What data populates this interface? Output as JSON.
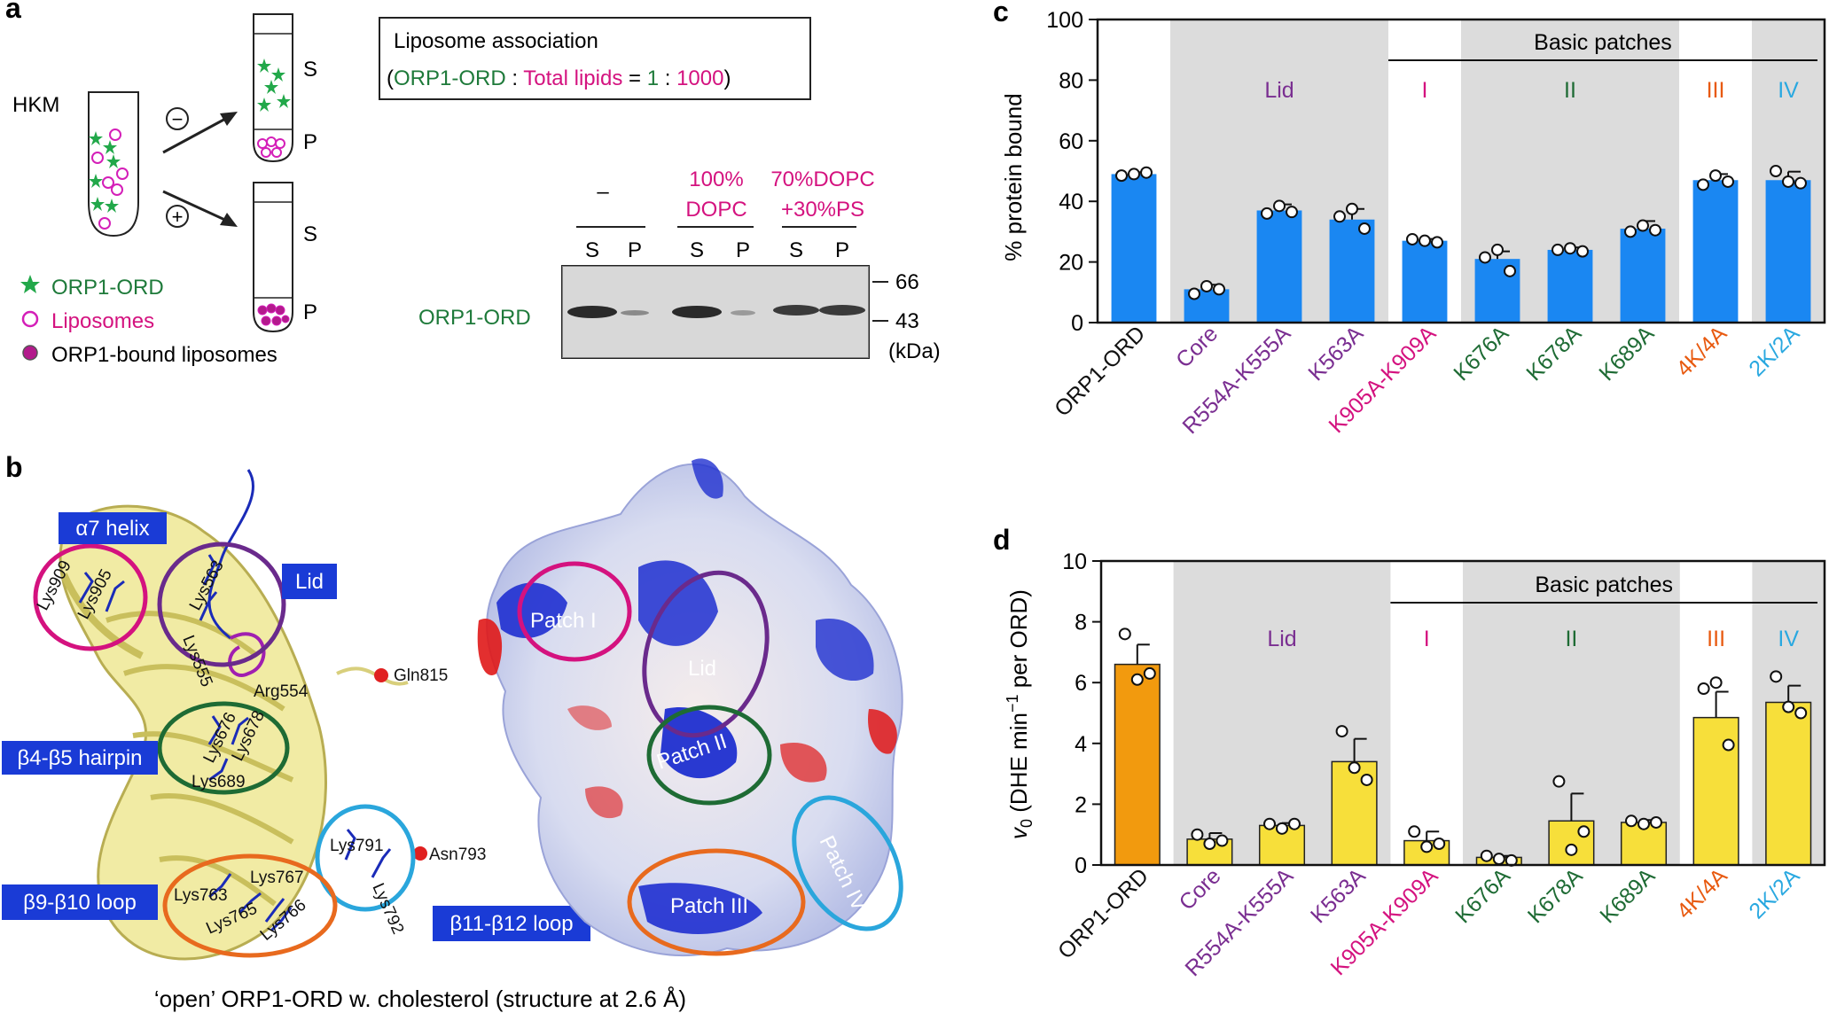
{
  "panel_a": {
    "label": "a",
    "hkm": "HKM",
    "s_label": "S",
    "p_label": "P",
    "minus": "−",
    "plus": "+",
    "legend": {
      "orp": "ORP1-ORD",
      "lipo": "Liposomes",
      "bound": "ORP1-bound liposomes"
    },
    "box_title": "Liposome association",
    "ratio": {
      "open": "(",
      "orp": "ORP1-ORD",
      "colon1": " : ",
      "lipids": "Total lipids",
      "eq": " = ",
      "one": "1",
      "colon2": " : ",
      "thousand": "1000",
      "close": ")"
    },
    "gel": {
      "cond_none": "–",
      "cond_dopc_1": "100%",
      "cond_dopc_2": "DOPC",
      "cond_ps_1": "70%DOPC",
      "cond_ps_2": "+30%PS",
      "lanes": [
        "S",
        "P",
        "S",
        "P",
        "S",
        "P"
      ],
      "band_label": "ORP1-ORD",
      "marker_66": "66",
      "marker_43": "43",
      "kda": "(kDa)"
    },
    "colors": {
      "green": "#1e7a3a",
      "magenta": "#d4127f",
      "green_star": "#22a84a"
    }
  },
  "panel_b": {
    "label": "b",
    "tags": {
      "a7": "α7 helix",
      "lid": "Lid",
      "b4b5": "β4-β5 hairpin",
      "b9b10": "β9-β10 loop",
      "b11b12": "β11-β12 loop"
    },
    "residues": {
      "lys909": "Lys909",
      "lys905": "Lys905",
      "lys563": "Lys563",
      "lys555": "Lys555",
      "arg554": "Arg554",
      "gln815": "Gln815",
      "lys676": "Lys676",
      "lys678": "Lys678",
      "lys689": "Lys689",
      "lys791": "Lys791",
      "lys792": "Lys792",
      "asn793": "Asn793",
      "lys763": "Lys763",
      "lys767": "Lys767",
      "lys765": "Lys765",
      "lys766": "Lys766"
    },
    "patches": {
      "p1": "Patch I",
      "lid": "Lid",
      "p2": "Patch II",
      "p3": "Patch III",
      "p4": "Patch IV"
    },
    "caption": "‘open’ ORP1-ORD w. cholesterol (structure at 2.6 Å)",
    "colors": {
      "tag_bg": "#1a3bd6",
      "circle_magenta": "#d4127f",
      "circle_purple": "#6a2a8c",
      "circle_green": "#1e6b34",
      "circle_orange": "#e86a1e",
      "circle_cyan": "#2aa6dc"
    }
  },
  "panel_c": {
    "label": "c",
    "chart_data": {
      "type": "bar",
      "title": "",
      "ylabel": "% protein bound",
      "ylim": [
        0,
        100
      ],
      "yticks": [
        "0",
        "20",
        "40",
        "60",
        "80",
        "100"
      ],
      "categories": [
        "ORP1-ORD",
        "Core",
        "R554A-K555A",
        "K563A",
        "K905A-K909A",
        "K676A",
        "K678A",
        "K689A",
        "4K/4A",
        "2K/2A"
      ],
      "values": [
        49,
        11,
        37,
        34,
        27,
        21,
        24,
        31,
        47,
        47
      ],
      "errors": [
        0.6,
        1.5,
        2,
        3.5,
        0.6,
        2.5,
        0.8,
        2.5,
        2,
        2.8
      ],
      "points": [
        [
          48.5,
          49,
          49.5
        ],
        [
          9.5,
          12,
          11
        ],
        [
          36,
          38.5,
          36.5
        ],
        [
          35,
          37.5,
          31
        ],
        [
          27.5,
          27,
          26.5
        ],
        [
          21.5,
          24,
          17
        ],
        [
          24,
          24.5,
          23.5
        ],
        [
          30,
          32,
          30.5
        ],
        [
          45.5,
          48.5,
          46.5
        ],
        [
          50,
          46.5,
          46
        ]
      ],
      "bar_color": "#1a87f2",
      "bracket": "Basic patches",
      "groups": [
        "Lid",
        "I",
        "II",
        "III",
        "IV"
      ],
      "group_colors": [
        "#7a2e91",
        "#d4127f",
        "#1e6b34",
        "#e85a10",
        "#29a8e0"
      ],
      "tick_colors": [
        "#111111",
        "#7a2e91",
        "#7a2e91",
        "#7a2e91",
        "#d4127f",
        "#1e6b34",
        "#1e6b34",
        "#1e6b34",
        "#e85a10",
        "#29a8e0"
      ]
    }
  },
  "panel_d": {
    "label": "d",
    "chart_data": {
      "type": "bar",
      "title": "",
      "ylabel_v": "v",
      "ylabel_sub": "0",
      "ylabel_rest": " (DHE min",
      "ylabel_sup": "−1",
      "ylabel_end": " per ORD)",
      "ylim": [
        0,
        10
      ],
      "yticks": [
        "0",
        "2",
        "4",
        "6",
        "8",
        "10"
      ],
      "categories": [
        "ORP1-ORD",
        "Core",
        "R554A-K555A",
        "K563A",
        "K905A-K909A",
        "K676A",
        "K678A",
        "K689A",
        "4K/4A",
        "2K/2A"
      ],
      "values": [
        6.6,
        0.85,
        1.3,
        3.4,
        0.8,
        0.25,
        1.45,
        1.4,
        4.85,
        5.35
      ],
      "errors": [
        0.65,
        0.2,
        0.08,
        0.75,
        0.3,
        0.05,
        0.9,
        0.08,
        0.85,
        0.55
      ],
      "points": [
        [
          7.6,
          6.1,
          6.3
        ],
        [
          1.0,
          0.7,
          0.8
        ],
        [
          1.35,
          1.2,
          1.35
        ],
        [
          4.4,
          3.2,
          2.8
        ],
        [
          1.1,
          0.6,
          0.7
        ],
        [
          0.3,
          0.2,
          0.15
        ],
        [
          2.75,
          0.5,
          1.1
        ],
        [
          1.45,
          1.35,
          1.4
        ],
        [
          5.8,
          6.0,
          3.95
        ],
        [
          6.2,
          5.2,
          5.0
        ]
      ],
      "bar_colors": [
        "#f29a0e",
        "#f7df3a",
        "#f7df3a",
        "#f7df3a",
        "#f7df3a",
        "#f7df3a",
        "#f7df3a",
        "#f7df3a",
        "#f7df3a",
        "#f7df3a"
      ],
      "bracket": "Basic patches",
      "groups": [
        "Lid",
        "I",
        "II",
        "III",
        "IV"
      ],
      "group_colors": [
        "#7a2e91",
        "#d4127f",
        "#1e6b34",
        "#e85a10",
        "#29a8e0"
      ],
      "tick_colors": [
        "#111111",
        "#7a2e91",
        "#7a2e91",
        "#7a2e91",
        "#d4127f",
        "#1e6b34",
        "#1e6b34",
        "#1e6b34",
        "#e85a10",
        "#29a8e0"
      ]
    }
  }
}
